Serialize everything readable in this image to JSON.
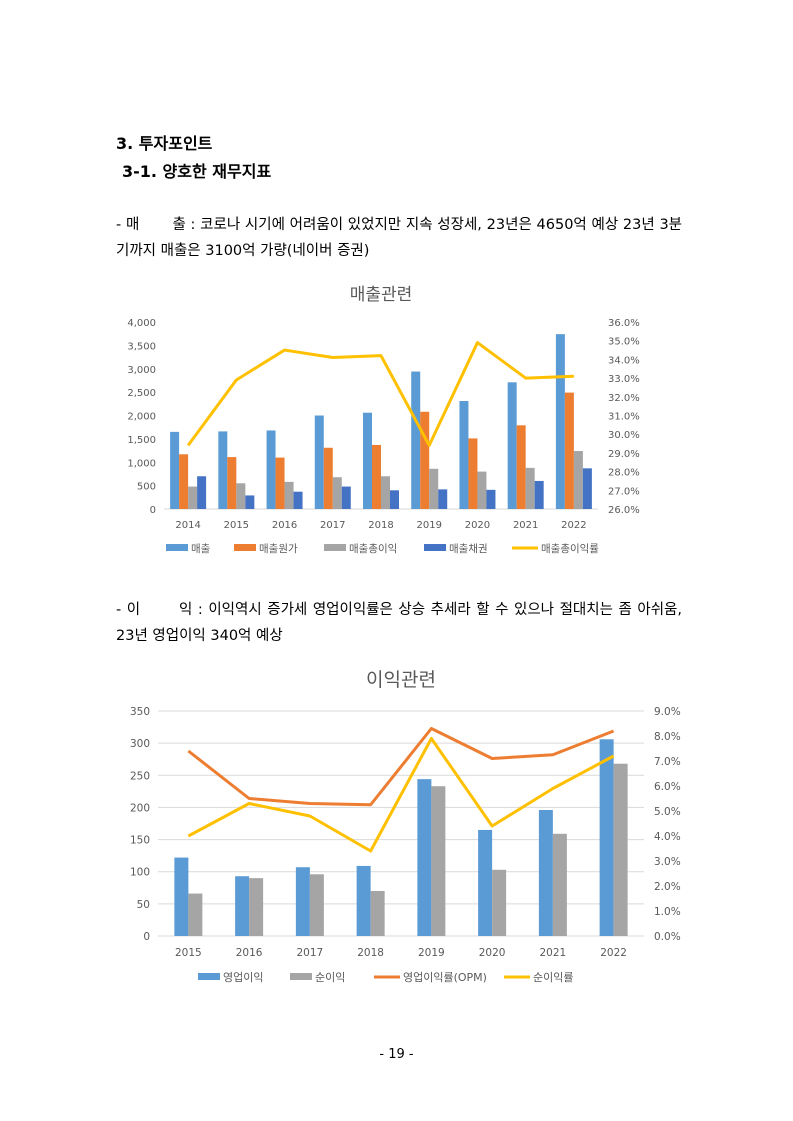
{
  "heading": {
    "section": "3. 투자포인트",
    "subsection": "3-1. 양호한 재무지표"
  },
  "paragraph1": {
    "label": "- 매       출 :",
    "text": "코로나 시기에 어려움이 있었지만 지속 성장세, 23년은 4650억 예상 23년 3분기까지 매출은 3100억 가량(네이버 증권)"
  },
  "paragraph2": {
    "label": "- 이       익 :",
    "text": "이익역시 증가세 영업이익률은 상승 추세라 할 수 있으나 절대치는 좀 아쉬움, 23년 영업이익 340억 예상"
  },
  "page_number": "- 19 -",
  "colors": {
    "blue": "#5b9bd5",
    "orange": "#ed7d31",
    "gray": "#a5a5a5",
    "darkblue": "#4472c4",
    "yellow": "#ffc000",
    "axis": "#595959",
    "grid": "#d9d9d9"
  },
  "chart_data": [
    {
      "type": "bar",
      "title": "매출관련",
      "categories": [
        "2014",
        "2015",
        "2016",
        "2017",
        "2018",
        "2019",
        "2020",
        "2021",
        "2022"
      ],
      "series": [
        {
          "name": "매출",
          "color": "#5b9bd5",
          "values": [
            1650,
            1660,
            1680,
            2000,
            2060,
            2940,
            2310,
            2710,
            3740
          ]
        },
        {
          "name": "매출원가",
          "color": "#ed7d31",
          "values": [
            1170,
            1110,
            1100,
            1310,
            1370,
            2080,
            1510,
            1790,
            2490
          ]
        },
        {
          "name": "매출총이익",
          "color": "#a5a5a5",
          "values": [
            480,
            550,
            580,
            680,
            700,
            860,
            800,
            880,
            1240
          ]
        },
        {
          "name": "매출채권",
          "color": "#4472c4",
          "values": [
            700,
            290,
            370,
            480,
            400,
            420,
            410,
            600,
            870
          ]
        }
      ],
      "line_series": [
        {
          "name": "매출총이익률",
          "color": "#ffc000",
          "axis": "right",
          "values": [
            29.4,
            32.9,
            34.5,
            34.1,
            34.2,
            29.4,
            34.9,
            33.0,
            33.1
          ]
        }
      ],
      "ylim": [
        0,
        4000
      ],
      "yticks": [
        "0",
        "500",
        "1,000",
        "1,500",
        "2,000",
        "2,500",
        "3,000",
        "3,500",
        "4,000"
      ],
      "y2lim": [
        26,
        36
      ],
      "y2ticks": [
        "26.0%",
        "27.0%",
        "28.0%",
        "29.0%",
        "30.0%",
        "31.0%",
        "32.0%",
        "33.0%",
        "34.0%",
        "35.0%",
        "36.0%"
      ],
      "legend": [
        "매출",
        "매출원가",
        "매출총이익",
        "매출채권",
        "매출총이익률"
      ],
      "grid": false
    },
    {
      "type": "bar",
      "title": "이익관련",
      "categories": [
        "2015",
        "2016",
        "2017",
        "2018",
        "2019",
        "2020",
        "2021",
        "2022"
      ],
      "series": [
        {
          "name": "영업이익",
          "color": "#5b9bd5",
          "values": [
            122,
            93,
            107,
            109,
            244,
            165,
            196,
            306
          ]
        },
        {
          "name": "순이익",
          "color": "#a5a5a5",
          "values": [
            66,
            90,
            96,
            70,
            233,
            103,
            159,
            268
          ]
        }
      ],
      "line_series": [
        {
          "name": "영업이익률(OPM)",
          "color": "#ed7d31",
          "axis": "right",
          "values": [
            7.4,
            5.5,
            5.3,
            5.25,
            8.3,
            7.1,
            7.25,
            8.2
          ]
        },
        {
          "name": "순이익률",
          "color": "#ffc000",
          "axis": "right",
          "values": [
            4.0,
            5.3,
            4.8,
            3.4,
            7.9,
            4.4,
            5.9,
            7.2
          ]
        }
      ],
      "ylim": [
        0,
        350
      ],
      "yticks": [
        "0",
        "50",
        "100",
        "150",
        "200",
        "250",
        "300",
        "350"
      ],
      "y2lim": [
        0,
        9
      ],
      "y2ticks": [
        "0.0%",
        "1.0%",
        "2.0%",
        "3.0%",
        "4.0%",
        "5.0%",
        "6.0%",
        "7.0%",
        "8.0%",
        "9.0%"
      ],
      "legend": [
        "영업이익",
        "순이익",
        "영업이익률(OPM)",
        "순이익률"
      ],
      "grid": true
    }
  ]
}
